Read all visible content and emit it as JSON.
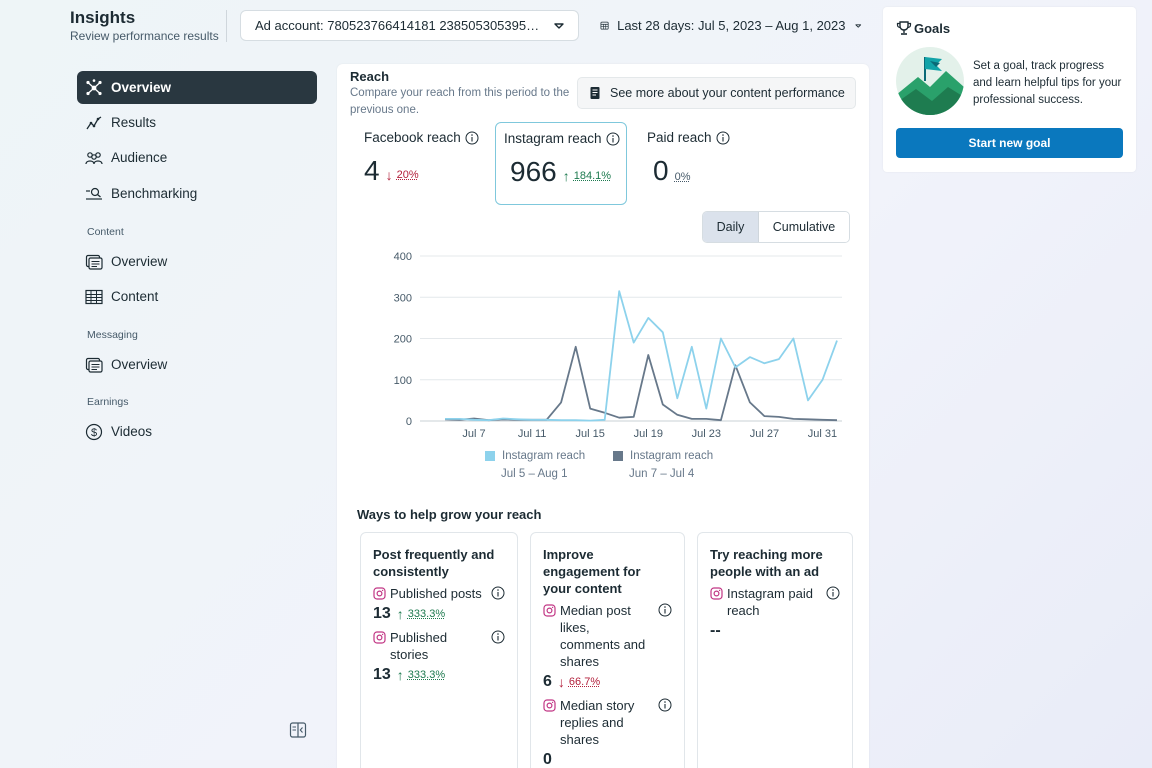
{
  "header": {
    "title": "Insights",
    "subtitle": "Review performance results",
    "account_selector": "Ad account: 780523766414181 2385053053952...",
    "date_range": "Last 28 days: Jul 5, 2023 – Aug 1, 2023"
  },
  "sidebar": {
    "items": [
      {
        "label": "Overview",
        "icon": "overview-network-icon",
        "active": true
      },
      {
        "label": "Results",
        "icon": "results-trend-icon"
      },
      {
        "label": "Audience",
        "icon": "audience-people-icon"
      },
      {
        "label": "Benchmarking",
        "icon": "benchmarking-search-icon"
      }
    ],
    "content_section": "Content",
    "content_items": [
      {
        "label": "Overview",
        "icon": "content-overview-icon"
      },
      {
        "label": "Content",
        "icon": "content-table-icon"
      }
    ],
    "messaging_section": "Messaging",
    "messaging_items": [
      {
        "label": "Overview",
        "icon": "messaging-overview-icon"
      }
    ],
    "earnings_section": "Earnings",
    "earnings_items": [
      {
        "label": "Videos",
        "icon": "dollar-circle-icon"
      }
    ]
  },
  "reach": {
    "title": "Reach",
    "description": "Compare your reach from this period to the previous one.",
    "see_more": "See more about your content performance",
    "metrics": [
      {
        "label": "Facebook reach",
        "value": "4",
        "direction": "down",
        "change": "20%"
      },
      {
        "label": "Instagram reach",
        "value": "966",
        "direction": "up",
        "change": "184.1%"
      },
      {
        "label": "Paid reach",
        "value": "0",
        "direction": "none",
        "change": "0%"
      }
    ],
    "toggle": {
      "daily": "Daily",
      "cumulative": "Cumulative",
      "selected": "Daily"
    }
  },
  "chart_data": {
    "type": "line",
    "ylim": [
      0,
      400
    ],
    "y_ticks": [
      0,
      100,
      200,
      300,
      400
    ],
    "x_ticks": [
      "Jul 7",
      "Jul 11",
      "Jul 15",
      "Jul 19",
      "Jul 23",
      "Jul 27",
      "Jul 31"
    ],
    "grid": true,
    "series": [
      {
        "name": "Instagram reach",
        "period": "Jul 5 – Aug 1",
        "color": "#8dd2ec",
        "values": [
          5,
          5,
          3,
          2,
          6,
          4,
          3,
          3,
          2,
          2,
          1,
          3,
          315,
          190,
          250,
          215,
          55,
          180,
          30,
          200,
          130,
          155,
          140,
          150,
          200,
          50,
          100,
          195
        ]
      },
      {
        "name": "Instagram reach",
        "period": "Jun 7 – Jul 4",
        "color": "#67788a",
        "values": [
          4,
          3,
          6,
          2,
          4,
          3,
          3,
          3,
          45,
          180,
          30,
          20,
          8,
          10,
          160,
          40,
          15,
          5,
          5,
          2,
          135,
          45,
          12,
          10,
          5,
          4,
          3,
          2
        ]
      }
    ]
  },
  "grow": {
    "title": "Ways to help grow your reach",
    "cards": [
      {
        "title": "Post frequently and consistently",
        "metrics": [
          {
            "label": "Published posts",
            "value": "13",
            "direction": "up",
            "change": "333.3%"
          },
          {
            "label": "Published stories",
            "value": "13",
            "direction": "up",
            "change": "333.3%"
          }
        ]
      },
      {
        "title": "Improve engagement for your content",
        "metrics": [
          {
            "label": "Median post likes, comments and shares",
            "value": "6",
            "direction": "down",
            "change": "66.7%"
          },
          {
            "label": "Median story replies and shares",
            "value": "0"
          }
        ]
      },
      {
        "title": "Try reaching more people with an ad",
        "metrics": [
          {
            "label": "Instagram paid reach",
            "value": "--"
          }
        ]
      }
    ]
  },
  "goals": {
    "title": "Goals",
    "text": "Set a goal, track progress and learn helpful tips for your professional success.",
    "button": "Start new goal"
  }
}
